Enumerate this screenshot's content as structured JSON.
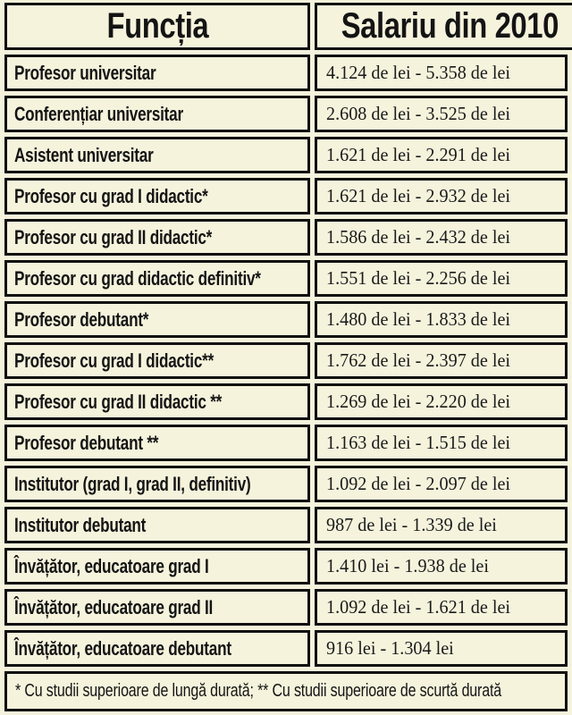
{
  "chart_data": {
    "type": "table",
    "columns": [
      "Funcția",
      "Salariu din 2010"
    ],
    "rows": [
      {
        "position": "Profesor universitar",
        "salary": "4.124 de lei - 5.358 de lei"
      },
      {
        "position": "Conferențiar universitar",
        "salary": "2.608 de lei - 3.525 de lei"
      },
      {
        "position": "Asistent universitar",
        "salary": "1.621 de lei - 2.291 de lei"
      },
      {
        "position": "Profesor cu grad I didactic*",
        "salary": "1.621 de lei - 2.932 de lei"
      },
      {
        "position": "Profesor cu grad II didactic*",
        "salary": "1.586 de lei - 2.432 de lei"
      },
      {
        "position": "Profesor cu grad didactic definitiv*",
        "salary": "1.551 de lei - 2.256 de lei"
      },
      {
        "position": "Profesor debutant*",
        "salary": "1.480 de lei - 1.833 de lei"
      },
      {
        "position": "Profesor cu grad I didactic**",
        "salary": "1.762 de lei - 2.397 de lei"
      },
      {
        "position": "Profesor cu grad II didactic **",
        "salary": "1.269 de lei - 2.220 de lei"
      },
      {
        "position": "Profesor debutant **",
        "salary": "1.163 de lei - 1.515 de lei"
      },
      {
        "position": "Institutor (grad I, grad II, definitiv)",
        "salary": "1.092 de lei - 2.097 de lei"
      },
      {
        "position": "Institutor debutant",
        "salary": "987 de lei - 1.339 de lei"
      },
      {
        "position": "Învățător, educatoare grad I",
        "salary": "1.410 lei - 1.938 de lei"
      },
      {
        "position": "Învățător, educatoare grad II",
        "salary": "1.092 de lei - 1.621 de lei"
      },
      {
        "position": "Învățător, educatoare debutant",
        "salary": "916 lei - 1.304 lei"
      }
    ],
    "footnote": "* Cu studii superioare de lungă durată; ** Cu studii superioare de scurtă durată"
  },
  "colors": {
    "background": "#f5f3dc",
    "border": "#101010",
    "text": "#141414"
  }
}
